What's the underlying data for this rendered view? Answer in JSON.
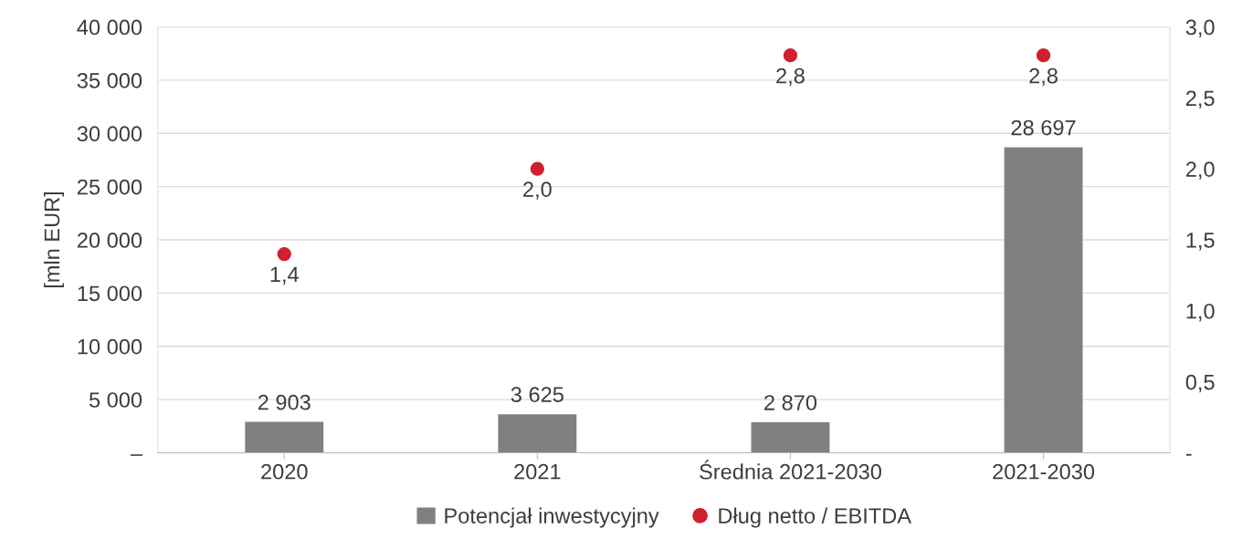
{
  "chart_data": {
    "type": "bar",
    "ylabel": "[mln EUR]",
    "categories": [
      "2020",
      "2021",
      "Średnia 2021-2030",
      "2021-2030"
    ],
    "series": [
      {
        "name": "Potencjał inwestycyjny",
        "color": "#808083",
        "values": [
          2903,
          3625,
          2870,
          28697
        ],
        "value_labels": [
          "2 903",
          "3 625",
          "2 870",
          "28 697"
        ]
      },
      {
        "name": "Dług netto / EBITDA",
        "type": "scatter",
        "axis": "y2",
        "color": "#d01f2e",
        "marker": "circle",
        "values": [
          1.4,
          2.0,
          2.8,
          2.8
        ],
        "value_labels": [
          "1,4",
          "2,0",
          "2,8",
          "2,8"
        ]
      }
    ],
    "ylim": [
      0,
      40000
    ],
    "yticks": [
      {
        "value": 0,
        "label": "–"
      },
      {
        "value": 5000,
        "label": "5 000"
      },
      {
        "value": 10000,
        "label": "10 000"
      },
      {
        "value": 15000,
        "label": "15 000"
      },
      {
        "value": 20000,
        "label": "20 000"
      },
      {
        "value": 25000,
        "label": "25 000"
      },
      {
        "value": 30000,
        "label": "30 000"
      },
      {
        "value": 35000,
        "label": "35 000"
      },
      {
        "value": 40000,
        "label": "40 000"
      }
    ],
    "y2lim": [
      0,
      3.0
    ],
    "y2ticks": [
      {
        "value": 0,
        "label": "-"
      },
      {
        "value": 0.5,
        "label": "0,5"
      },
      {
        "value": 1.0,
        "label": "1,0"
      },
      {
        "value": 1.5,
        "label": "1,5"
      },
      {
        "value": 2.0,
        "label": "2,0"
      },
      {
        "value": 2.5,
        "label": "2,5"
      },
      {
        "value": 3.0,
        "label": "3,0"
      }
    ],
    "grid": "y",
    "legend": "bottom"
  }
}
